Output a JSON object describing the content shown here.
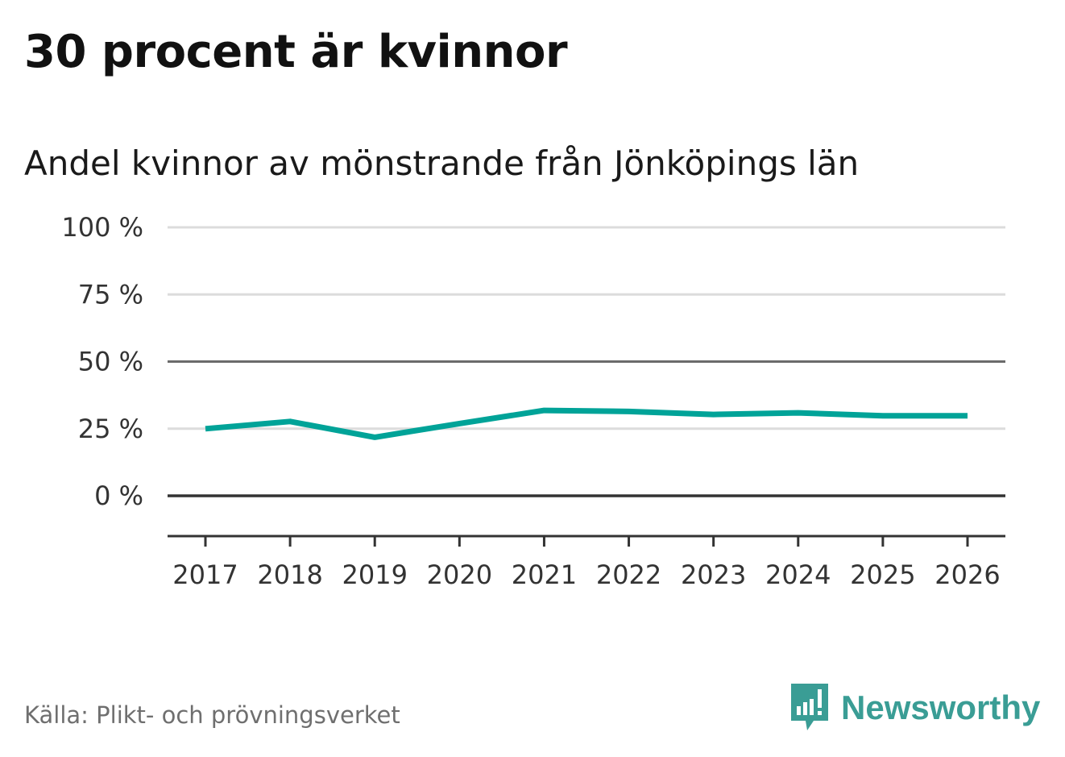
{
  "title": "30 procent är kvinnor",
  "subtitle": "Andel kvinnor av mönstrande från Jönköpings län",
  "source": "Källa: Plikt- och prövningsverket",
  "brand": {
    "name": "Newsworthy",
    "icon": "newsworthy-logo-icon",
    "color": "#3a9d95"
  },
  "chart_data": {
    "type": "line",
    "x": [
      "2017",
      "2018",
      "2019",
      "2020",
      "2021",
      "2022",
      "2023",
      "2024",
      "2025",
      "2026"
    ],
    "series": [
      {
        "values": [
          25,
          27.7,
          21.8,
          26.9,
          31.8,
          31.4,
          30.3,
          30.9,
          29.8,
          29.8
        ],
        "color": "#00a398"
      }
    ],
    "yticks": [
      0,
      25,
      50,
      75,
      100
    ],
    "ytick_labels": [
      "0 %",
      "25 %",
      "50 %",
      "75 %",
      "100 %"
    ],
    "ylim": [
      -15,
      100
    ],
    "xlabel": "",
    "ylabel": "",
    "grid": true,
    "grid_color": "#dcdcdc",
    "reference_line_color": "#6b6b6b",
    "zero_line_color": "#333333"
  }
}
